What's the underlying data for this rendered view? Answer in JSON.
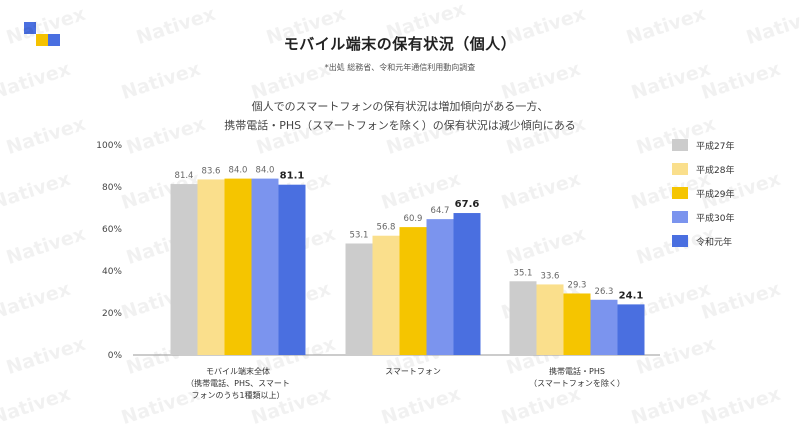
{
  "title": "モバイル端末の保有状況（個人）",
  "source": "*出処 総務省、令和元年通信利用動向調査",
  "subtitle_lines": [
    "個人でのスマートフォンの保有状況は増加傾向がある一方、",
    "携帯電話・PHS（スマートフォンを除く）の保有状況は減少傾向にある"
  ],
  "watermark_text": "Nativex",
  "colors": {
    "logo_blue": "#4a6fe0",
    "logo_yellow": "#f5c200"
  },
  "chart_data": {
    "type": "bar",
    "title": "",
    "xlabel": "",
    "ylabel": "",
    "ylim": [
      0,
      100
    ],
    "yticks": [
      "0%",
      "20%",
      "40%",
      "60%",
      "80%",
      "100%"
    ],
    "ytick_values": [
      0,
      20,
      40,
      60,
      80,
      100
    ],
    "grid": false,
    "legend_position": "right",
    "categories": [
      [
        "モバイル端末全体",
        "（携帯電話、PHS、スマート",
        "フォンのうち1種類以上）"
      ],
      [
        "スマートフォン"
      ],
      [
        "携帯電話・PHS",
        "（スマートフォンを除く）"
      ]
    ],
    "series": [
      {
        "name": "平成27年",
        "color": "#cccccc",
        "values": [
          81.4,
          53.1,
          35.1
        ],
        "labels": [
          "81.4",
          "53.1",
          "35.1"
        ],
        "bold": false
      },
      {
        "name": "平成28年",
        "color": "#fadf8c",
        "values": [
          83.6,
          56.8,
          33.6
        ],
        "labels": [
          "83.6",
          "56.8",
          "33.6"
        ],
        "bold": false
      },
      {
        "name": "平成29年",
        "color": "#f5c500",
        "values": [
          84.0,
          60.9,
          29.3
        ],
        "labels": [
          "84.0",
          "60.9",
          "29.3"
        ],
        "bold": false
      },
      {
        "name": "平成30年",
        "color": "#7b94ee",
        "values": [
          84.0,
          64.7,
          26.3
        ],
        "labels": [
          "84.0",
          "64.7",
          "26.3"
        ],
        "bold": false
      },
      {
        "name": "令和元年",
        "color": "#4a6fe0",
        "values": [
          81.1,
          67.6,
          24.1
        ],
        "labels": [
          "81.1",
          "67.6",
          "24.1"
        ],
        "bold": true
      }
    ]
  }
}
